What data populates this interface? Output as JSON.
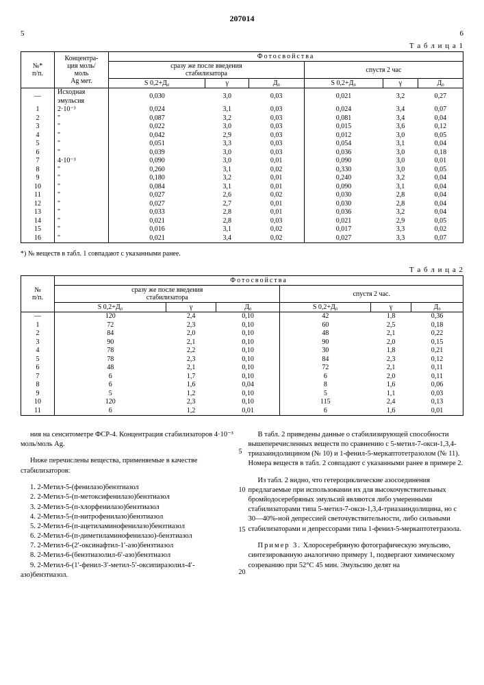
{
  "header": {
    "doc_number": "207014",
    "left_col": "5",
    "right_col": "6"
  },
  "table1": {
    "caption": "Т а б л и ц а  1",
    "h_photo": "Фотосвойства",
    "h_num": "№*\nп/п.",
    "h_conc": "Концентра-\nция моль/\nмоль\nAg мет.",
    "h_after_intro": "сразу же после введения\nстабилизатора",
    "h_after_2h": "спустя 2 час",
    "h_s": "S 0,2+Д₀",
    "h_gamma": "γ",
    "h_d": "Д₀",
    "rows": [
      [
        "—",
        "Исходная\nэмульсия",
        "0,030",
        "3,0",
        "0,03",
        "0,021",
        "3,2",
        "0,27"
      ],
      [
        "1",
        "2·10⁻³",
        "0,024",
        "3,1",
        "0,03",
        "0,024",
        "3,4",
        "0,07"
      ],
      [
        "2",
        "\"",
        "0,087",
        "3,2",
        "0,03",
        "0,081",
        "3,4",
        "0,04"
      ],
      [
        "3",
        "\"",
        "0,022",
        "3,0",
        "0,03",
        "0,015",
        "3,6",
        "0,12"
      ],
      [
        "4",
        "\"",
        "0,042",
        "2,9",
        "0,03",
        "0,012",
        "3,0",
        "0,05"
      ],
      [
        "5",
        "\"",
        "0,051",
        "3,3",
        "0,03",
        "0,054",
        "3,1",
        "0,04"
      ],
      [
        "6",
        "\"",
        "0,039",
        "3,0",
        "0,03",
        "0,036",
        "3,0",
        "0,18"
      ],
      [
        "7",
        "4·10⁻³",
        "0,090",
        "3,0",
        "0,01",
        "0,090",
        "3,0",
        "0,01"
      ],
      [
        "8",
        "\"",
        "0,260",
        "3,1",
        "0,02",
        "0,330",
        "3,0",
        "0,05"
      ],
      [
        "9",
        "\"",
        "0,180",
        "3,2",
        "0,01",
        "0,240",
        "3,2",
        "0,04"
      ],
      [
        "10",
        "\"",
        "0,084",
        "3,1",
        "0,01",
        "0,090",
        "3,1",
        "0,04"
      ],
      [
        "11",
        "\"",
        "0,027",
        "2,6",
        "0,02",
        "0,030",
        "2,8",
        "0,04"
      ],
      [
        "12",
        "\"",
        "0,027",
        "2,7",
        "0,01",
        "0,030",
        "2,8",
        "0,04"
      ],
      [
        "13",
        "\"",
        "0,033",
        "2,8",
        "0,01",
        "0,036",
        "3,2",
        "0,04"
      ],
      [
        "14",
        "\"",
        "0,021",
        "2,8",
        "0,03",
        "0,021",
        "2,9",
        "0,05"
      ],
      [
        "15",
        "\"",
        "0,016",
        "3,1",
        "0,02",
        "0,017",
        "3,3",
        "0,02"
      ],
      [
        "16",
        "\"",
        "0,021",
        "3,4",
        "0,02",
        "0,027",
        "3,3",
        "0,07"
      ]
    ],
    "footnote": "*) № веществ в табл. 1 совпадают с указанными ранее."
  },
  "table2": {
    "caption": "Т а б л и ц а  2",
    "h_photo": "Фотосвойства",
    "h_num": "№\nп/п.",
    "h_after_intro": "сразу же после введения\nстабилизатора",
    "h_after_2h": "спустя 2 час.",
    "h_s": "S 0,2+Д₀",
    "h_gamma": "γ",
    "h_d": "Д₀",
    "rows": [
      [
        "—",
        "120",
        "2,4",
        "0,10",
        "42",
        "1,8",
        "0,36"
      ],
      [
        "1",
        "72",
        "2,3",
        "0,10",
        "60",
        "2,5",
        "0,18"
      ],
      [
        "2",
        "84",
        "2,0",
        "0,10",
        "48",
        "2,1",
        "0,22"
      ],
      [
        "3",
        "90",
        "2,1",
        "0,10",
        "90",
        "2,0",
        "0,15"
      ],
      [
        "4",
        "78",
        "2,2",
        "0,10",
        "30",
        "1,8",
        "0,21"
      ],
      [
        "5",
        "78",
        "2,3",
        "0,10",
        "84",
        "2,3",
        "0,12"
      ],
      [
        "6",
        "48",
        "2,1",
        "0,10",
        "72",
        "2,1",
        "0,11"
      ],
      [
        "7",
        "6",
        "1,7",
        "0,10",
        "6",
        "2,0",
        "0,11"
      ],
      [
        "8",
        "6",
        "1,6",
        "0,04",
        "8",
        "1,6",
        "0,06"
      ],
      [
        "9",
        "5",
        "1,2",
        "0,10",
        "5",
        "1,1",
        "0,03"
      ],
      [
        "10",
        "120",
        "2,3",
        "0,10",
        "115",
        "2,4",
        "0,13"
      ],
      [
        "11",
        "6",
        "1,2",
        "0,01",
        "6",
        "1,6",
        "0,01"
      ]
    ]
  },
  "left_text": {
    "p1": "ния на сенситометре ФСР-4. Концентрация стабилизаторов 4·10⁻³ моль/моль Ag.",
    "p2": "Ниже перечислены вещества, применяемые в качестве стабилизаторов:",
    "items": [
      "1. 2-Метил-5-(фенилазо)бензтиазол",
      "2. 2-Метил-5-(п-метоксифенилазо)бензтиазол",
      "3. 2-Метил-5-(п-хлорфенилазо)бензтиазол",
      "4. 2-Метил-5-(п-нитрофенилазо)бензтиазол",
      "5. 2-Метил-6-(п-ацетиламинофенилазо)бензтиазол",
      "6. 2-Метил-6-(п-диметиламинофенилазо)-бензтиазол",
      "7. 2-Метил-6-(2′-оксинафтил-1′-азо)бензтиазол",
      "8. 2-Метил-6-(бензтиазолил-6′-азо)бензтиазол",
      "9. 2-Метил-6-(1′-фенил-3′-метил-5′-оксипиразолил-4′-азо)бензтиазол."
    ]
  },
  "right_text": {
    "p1": "В табл. 2 приведены данные о стабилизирующей способности вышеперечисленных веществ по сравнению с 5-метил-7-окси-1,3,4-триазаиндолицином (№ 10) и 1-фенил-5-меркаптотетразолом (№ 11). Номера веществ в табл. 2 совпадают с указанными ранее в примере 2.",
    "p2": "Из табл. 2 видно, что гетероциклические азосоединения предлагаемые при использовании их для высокочувствительных бромйодосеребряных эмульсий являются либо умеренными стабилизаторами типа 5-метил-7-окси-1,3,4-триазаиндолицина, но с 30—40%-ной депрессией светочувствительности, либо сильными стабилизаторами и депрессорами типа 1-фенил-5-меркаптотетразола.",
    "p3": "П р и м е р 3. Хлоросеребряную фотографическую эмульсию, синтезированную аналогично примеру 1, подвергают химическому созреванию при 52°С 45 мин. Эмульсию делят на",
    "margin_nums": [
      "5",
      "10",
      "15",
      "20"
    ]
  }
}
